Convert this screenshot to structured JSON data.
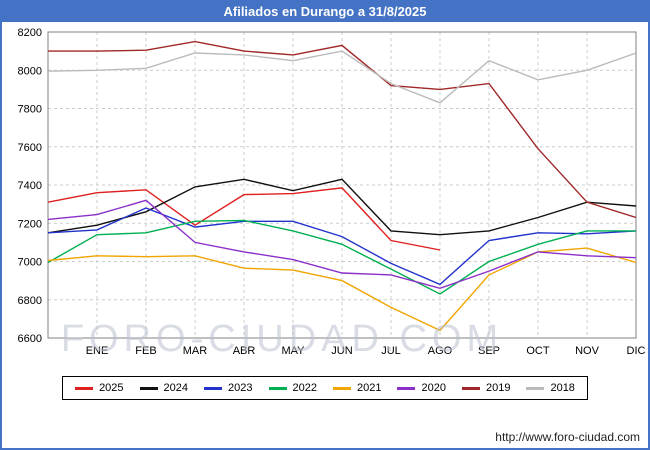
{
  "title": "Afiliados en Durango a 31/8/2025",
  "watermark": "FORO-CIUDAD.COM",
  "footer": {
    "url": "http://www.foro-ciudad.com"
  },
  "colors": {
    "titlebar": "#4472c4",
    "frame_border": "#4472c4",
    "grid": "#cccccc"
  },
  "chart_data": {
    "type": "line",
    "title": "Afiliados en Durango a 31/8/2025",
    "categories": [
      "ENE",
      "FEB",
      "MAR",
      "ABR",
      "MAY",
      "JUN",
      "JUL",
      "AGO",
      "SEP",
      "OCT",
      "NOV",
      "DIC"
    ],
    "ylim": [
      6600,
      8200
    ],
    "ytick_step": 200,
    "grid": true,
    "legend_position": "bottom",
    "alignment_note": "values[0] sits at the left plot edge before ENE; values[1..12] align to ENE..DIC",
    "series": [
      {
        "name": "2025",
        "color": "#e01f1f",
        "values": [
          7310,
          7360,
          7375,
          7190,
          7350,
          7355,
          7385,
          7110,
          7060,
          null,
          null,
          null,
          null
        ]
      },
      {
        "name": "2024",
        "color": "#111111",
        "values": [
          7150,
          7190,
          7260,
          7390,
          7430,
          7370,
          7430,
          7160,
          7140,
          7160,
          7230,
          7310,
          7290
        ]
      },
      {
        "name": "2023",
        "color": "#2233cc",
        "values": [
          7150,
          7165,
          7280,
          7180,
          7210,
          7210,
          7130,
          6990,
          6880,
          7110,
          7150,
          7145,
          7160
        ]
      },
      {
        "name": "2022",
        "color": "#00b050",
        "values": [
          6995,
          7140,
          7150,
          7210,
          7215,
          7160,
          7090,
          6960,
          6830,
          7000,
          7090,
          7160,
          7160
        ]
      },
      {
        "name": "2021",
        "color": "#f0a500",
        "values": [
          7005,
          7030,
          7025,
          7030,
          6965,
          6955,
          6900,
          6760,
          6640,
          6930,
          7050,
          7070,
          6995
        ]
      },
      {
        "name": "2020",
        "color": "#8b2fc9",
        "values": [
          7220,
          7245,
          7320,
          7100,
          7050,
          7010,
          6940,
          6930,
          6860,
          6950,
          7050,
          7030,
          7020
        ]
      },
      {
        "name": "2019",
        "color": "#a02828",
        "values": [
          8100,
          8100,
          8105,
          8150,
          8100,
          8080,
          8130,
          7920,
          7900,
          7930,
          7590,
          7310,
          7230
        ]
      },
      {
        "name": "2018",
        "color": "#bbbbbb",
        "values": [
          7995,
          8000,
          8010,
          8090,
          8080,
          8050,
          8100,
          7930,
          7830,
          8050,
          7950,
          8000,
          8090
        ]
      }
    ]
  }
}
